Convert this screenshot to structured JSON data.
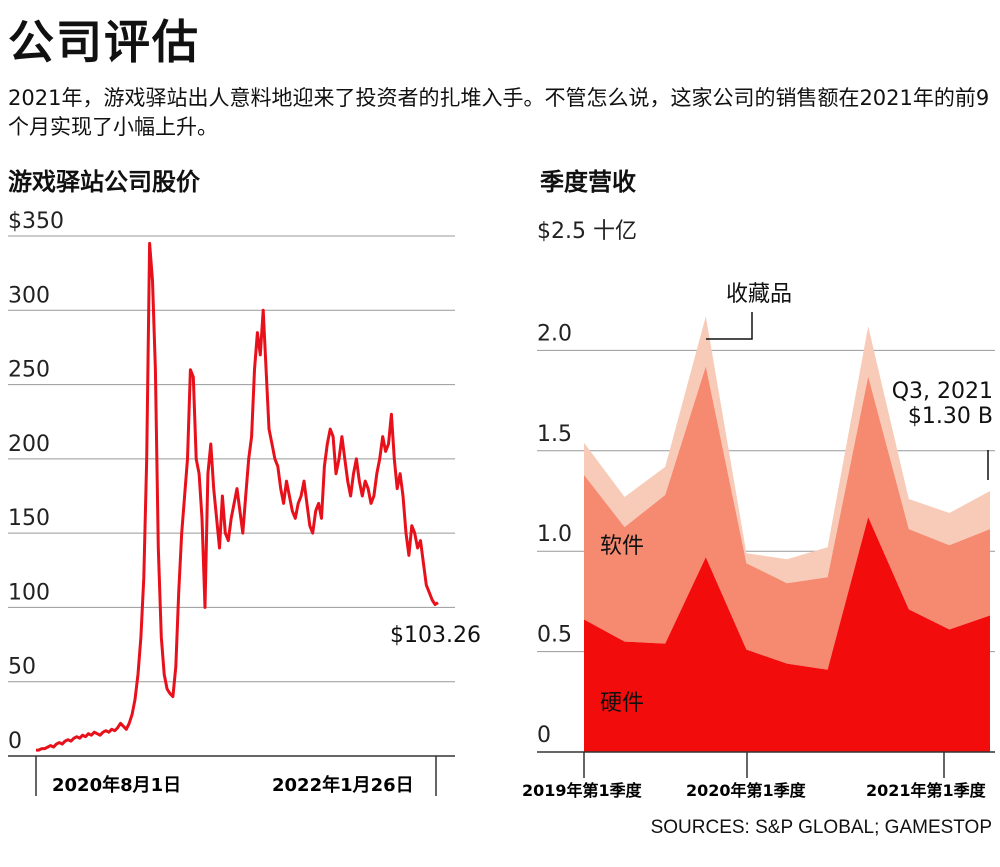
{
  "header": {
    "title": "公司评估",
    "intro": "2021年，游戏驿站出人意料地迎来了投资者的扎堆入手。不管怎么说，这家公司的销售额在2021年的前9个月实现了小幅上升。"
  },
  "source": "SOURCES: S&P GLOBAL; GAMESTOP",
  "colors": {
    "line": "#e8101a",
    "hardware": "#f20c0c",
    "software": "#f58a70",
    "collectibles": "#f8cbb8",
    "grid": "#999999"
  },
  "chart_data": [
    {
      "type": "line",
      "title": "游戏驿站公司股价",
      "ylim": [
        0,
        350
      ],
      "yticks": [
        0,
        50,
        100,
        150,
        200,
        250,
        300,
        350
      ],
      "ytick_labels": [
        "0",
        "50",
        "100",
        "150",
        "200",
        "250",
        "300",
        "$350"
      ],
      "xtick_labels": [
        "2020年8月1日",
        "2022年1月26日"
      ],
      "end_label": "$103.26",
      "series": [
        {
          "values": [
            4,
            4,
            5,
            5,
            6,
            7,
            6,
            8,
            9,
            8,
            10,
            11,
            10,
            12,
            13,
            12,
            14,
            13,
            15,
            14,
            16,
            15,
            14,
            16,
            17,
            16,
            18,
            17,
            19,
            22,
            20,
            18,
            22,
            28,
            38,
            55,
            80,
            120,
            200,
            345,
            320,
            260,
            140,
            80,
            55,
            45,
            42,
            40,
            60,
            110,
            150,
            175,
            200,
            260,
            255,
            200,
            190,
            160,
            100,
            190,
            210,
            180,
            160,
            140,
            175,
            150,
            145,
            160,
            170,
            180,
            165,
            150,
            175,
            200,
            215,
            260,
            285,
            270,
            300,
            260,
            220,
            210,
            200,
            195,
            180,
            170,
            185,
            175,
            165,
            160,
            170,
            175,
            185,
            170,
            155,
            150,
            165,
            170,
            160,
            195,
            210,
            220,
            215,
            190,
            200,
            215,
            200,
            185,
            175,
            190,
            200,
            185,
            175,
            185,
            180,
            170,
            175,
            190,
            200,
            215,
            205,
            210,
            230,
            200,
            180,
            190,
            175,
            150,
            135,
            155,
            150,
            140,
            145,
            130,
            115,
            110,
            105,
            102,
            103.26
          ]
        }
      ]
    },
    {
      "type": "area",
      "title": "季度营收",
      "ylim": [
        0,
        2.5
      ],
      "yticks": [
        0,
        0.5,
        1.0,
        1.5,
        2.0,
        2.5
      ],
      "ytick_labels": [
        "0",
        "0.5",
        "1.0",
        "1.5",
        "2.0",
        "$2.5 十亿"
      ],
      "xtick_labels": [
        "2019年第1季度",
        "2020年第1季度",
        "2021年第1季度"
      ],
      "x": [
        "2019Q1",
        "2019Q2",
        "2019Q3",
        "2019Q4",
        "2020Q1",
        "2020Q2",
        "2020Q3",
        "2020Q4",
        "2021Q1",
        "2021Q2",
        "2021Q3"
      ],
      "series": [
        {
          "name": "硬件",
          "values": [
            0.66,
            0.55,
            0.54,
            0.97,
            0.51,
            0.44,
            0.41,
            1.17,
            0.71,
            0.61,
            0.68
          ]
        },
        {
          "name": "软件",
          "values": [
            0.72,
            0.57,
            0.74,
            0.95,
            0.43,
            0.4,
            0.46,
            0.7,
            0.4,
            0.42,
            0.43
          ]
        },
        {
          "name": "收藏品",
          "values": [
            0.16,
            0.15,
            0.14,
            0.25,
            0.05,
            0.12,
            0.15,
            0.25,
            0.15,
            0.16,
            0.19
          ]
        }
      ],
      "annotations": {
        "collectibles": "收藏品",
        "end_label_1": "Q3, 2021",
        "end_label_2": "$1.30 B"
      }
    }
  ]
}
